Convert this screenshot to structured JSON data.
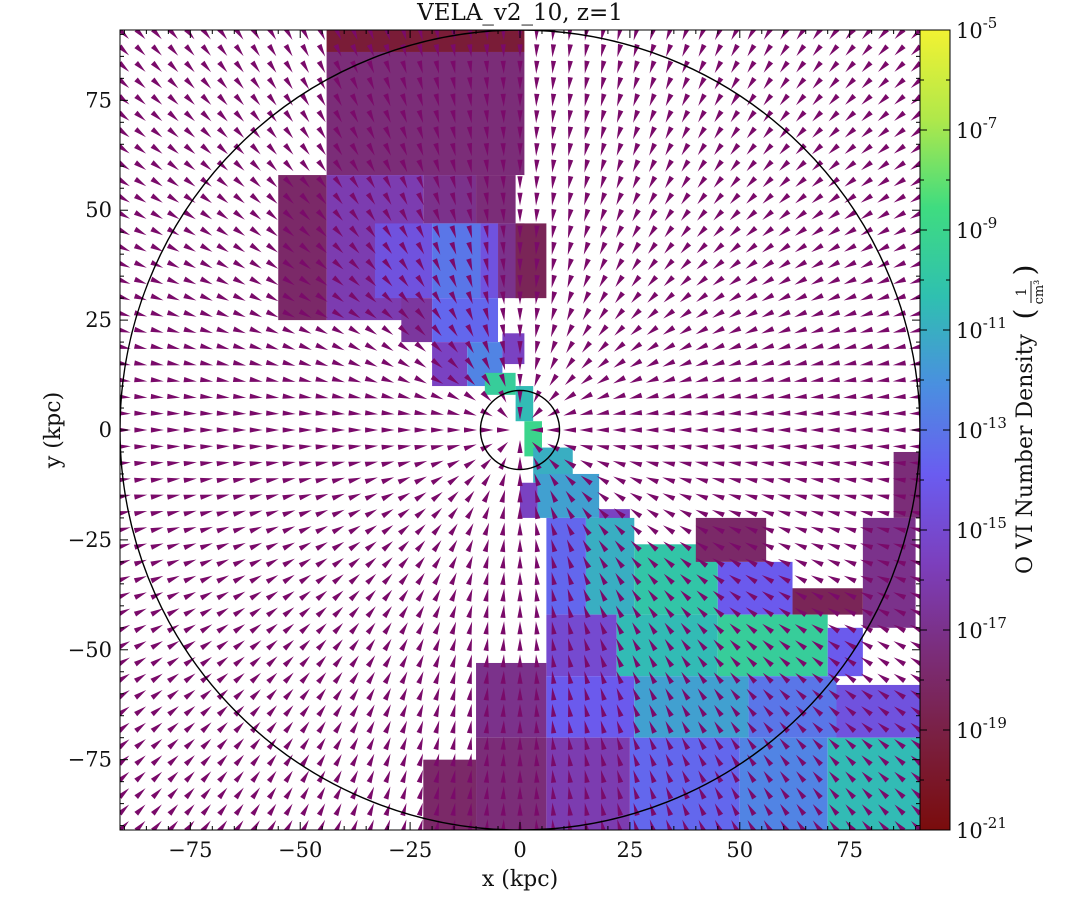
{
  "chart_data": {
    "type": "heatmap",
    "title": "VELA_v2_10, z=1",
    "xlabel": "x  (kpc)",
    "ylabel": "y  (kpc)",
    "xlim": [
      -91,
      91
    ],
    "ylim": [
      -91,
      91
    ],
    "x_ticks": [
      -75,
      -50,
      -25,
      0,
      25,
      50,
      75
    ],
    "y_ticks": [
      -75,
      -50,
      -25,
      0,
      25,
      50,
      75
    ],
    "x_tick_labels": [
      "−75",
      "−50",
      "−25",
      "0",
      "25",
      "50",
      "75"
    ],
    "y_tick_labels": [
      "−75",
      "−50",
      "−25",
      "0",
      "25",
      "50",
      "75"
    ],
    "colorbar": {
      "label": "O VI Number Density",
      "unit_numerator": "1",
      "unit_denominator": "cm³",
      "log_range": [
        -21,
        -5
      ],
      "ticks": [
        {
          "value": -21,
          "base": "10",
          "exp": "-21"
        },
        {
          "value": -19,
          "base": "10",
          "exp": "-19"
        },
        {
          "value": -17,
          "base": "10",
          "exp": "-17"
        },
        {
          "value": -15,
          "base": "10",
          "exp": "-15"
        },
        {
          "value": -13,
          "base": "10",
          "exp": "-13"
        },
        {
          "value": -11,
          "base": "10",
          "exp": "-11"
        },
        {
          "value": -9,
          "base": "10",
          "exp": "-9"
        },
        {
          "value": -7,
          "base": "10",
          "exp": "-7"
        },
        {
          "value": -5,
          "base": "10",
          "exp": "-5"
        }
      ],
      "colormap": [
        "#7a0c0c",
        "#7a1f3f",
        "#7b2d7a",
        "#7c3fbd",
        "#6a5cf0",
        "#4a8fe0",
        "#2fc0b0",
        "#3fdc80",
        "#b0e84a",
        "#f2f232"
      ]
    },
    "circles": [
      {
        "name": "virial-radius",
        "cx": 0,
        "cy": 0,
        "r": 91
      },
      {
        "name": "inner-radius",
        "cx": 0,
        "cy": 0,
        "r": 9
      }
    ],
    "regions": [
      {
        "x0": -44,
        "x1": 1,
        "y0": 86,
        "y1": 91,
        "v": -19.5
      },
      {
        "x0": -44,
        "x1": 1,
        "y0": 58,
        "y1": 86,
        "v": -17.5
      },
      {
        "x0": -55,
        "x1": -44,
        "y0": 25,
        "y1": 58,
        "v": -18.0
      },
      {
        "x0": -44,
        "x1": -22,
        "y0": 25,
        "y1": 58,
        "v": -16.0
      },
      {
        "x0": -22,
        "x1": -10,
        "y0": 47,
        "y1": 58,
        "v": -17.0
      },
      {
        "x0": -10,
        "x1": -1,
        "y0": 47,
        "y1": 58,
        "v": -17.5
      },
      {
        "x0": -33,
        "x1": -20,
        "y0": 30,
        "y1": 47,
        "v": -14.5
      },
      {
        "x0": -20,
        "x1": -9,
        "y0": 30,
        "y1": 47,
        "v": -13.0
      },
      {
        "x0": -9,
        "x1": -5,
        "y0": 30,
        "y1": 47,
        "v": -14.5
      },
      {
        "x0": -5,
        "x1": 1,
        "y0": 30,
        "y1": 47,
        "v": -17.0
      },
      {
        "x0": -1,
        "x1": 6,
        "y0": 30,
        "y1": 47,
        "v": -18.5
      },
      {
        "x0": -27,
        "x1": -20,
        "y0": 20,
        "y1": 30,
        "v": -16.5
      },
      {
        "x0": -20,
        "x1": -5,
        "y0": 20,
        "y1": 30,
        "v": -13.5
      },
      {
        "x0": -20,
        "x1": -12,
        "y0": 10,
        "y1": 20,
        "v": -15.5
      },
      {
        "x0": -12,
        "x1": -4,
        "y0": 10,
        "y1": 20,
        "v": -12.5
      },
      {
        "x0": -4,
        "x1": 1,
        "y0": 15,
        "y1": 22,
        "v": -15.5
      },
      {
        "x0": -8,
        "x1": -1,
        "y0": 8,
        "y1": 13,
        "v": -9.5
      },
      {
        "x0": -1,
        "x1": 3,
        "y0": 2,
        "y1": 10,
        "v": -10.5
      },
      {
        "x0": 1,
        "x1": 5,
        "y0": -6,
        "y1": 2,
        "v": -9.0
      },
      {
        "x0": 3,
        "x1": 12,
        "y0": -12,
        "y1": -4,
        "v": -11.0
      },
      {
        "x0": 0,
        "x1": 4,
        "y0": -20,
        "y1": -12,
        "v": -15.5
      },
      {
        "x0": 4,
        "x1": 18,
        "y0": -20,
        "y1": -10,
        "v": -11.5
      },
      {
        "x0": 18,
        "x1": 25,
        "y0": -28,
        "y1": -18,
        "v": -15.5
      },
      {
        "x0": 6,
        "x1": 15,
        "y0": -42,
        "y1": -20,
        "v": -13.5
      },
      {
        "x0": 15,
        "x1": 26,
        "y0": -42,
        "y1": -20,
        "v": -11.0
      },
      {
        "x0": 26,
        "x1": 45,
        "y0": -42,
        "y1": -26,
        "v": -10.0
      },
      {
        "x0": 45,
        "x1": 62,
        "y0": -42,
        "y1": -30,
        "v": -14.0
      },
      {
        "x0": 40,
        "x1": 56,
        "y0": -30,
        "y1": -20,
        "v": -18.0
      },
      {
        "x0": 62,
        "x1": 78,
        "y0": -42,
        "y1": -36,
        "v": -18.5
      },
      {
        "x0": 78,
        "x1": 90,
        "y0": -45,
        "y1": -20,
        "v": -17.0
      },
      {
        "x0": 85,
        "x1": 91,
        "y0": -20,
        "y1": -5,
        "v": -17.5
      },
      {
        "x0": 6,
        "x1": 22,
        "y0": -56,
        "y1": -42,
        "v": -15.0
      },
      {
        "x0": 22,
        "x1": 45,
        "y0": -56,
        "y1": -42,
        "v": -10.5
      },
      {
        "x0": 45,
        "x1": 70,
        "y0": -56,
        "y1": -42,
        "v": -9.5
      },
      {
        "x0": 70,
        "x1": 78,
        "y0": -56,
        "y1": -45,
        "v": -14.0
      },
      {
        "x0": -10,
        "x1": 6,
        "y0": -70,
        "y1": -53,
        "v": -17.0
      },
      {
        "x0": 6,
        "x1": 26,
        "y0": -70,
        "y1": -56,
        "v": -14.0
      },
      {
        "x0": 26,
        "x1": 52,
        "y0": -70,
        "y1": -56,
        "v": -11.5
      },
      {
        "x0": 52,
        "x1": 72,
        "y0": -70,
        "y1": -56,
        "v": -13.0
      },
      {
        "x0": 72,
        "x1": 91,
        "y0": -70,
        "y1": -58,
        "v": -14.5
      },
      {
        "x0": -10,
        "x1": 6,
        "y0": -91,
        "y1": -70,
        "v": -17.5
      },
      {
        "x0": -22,
        "x1": -10,
        "y0": -91,
        "y1": -75,
        "v": -18.0
      },
      {
        "x0": 6,
        "x1": 25,
        "y0": -91,
        "y1": -70,
        "v": -16.0
      },
      {
        "x0": 25,
        "x1": 50,
        "y0": -91,
        "y1": -70,
        "v": -13.5
      },
      {
        "x0": 50,
        "x1": 70,
        "y0": -91,
        "y1": -70,
        "v": -12.5
      },
      {
        "x0": 70,
        "x1": 91,
        "y0": -91,
        "y1": -70,
        "v": -10.5
      }
    ],
    "velocity_field": {
      "description": "arrows point radially inward",
      "x_range": [
        -90,
        90
      ],
      "y_range": [
        -90,
        90
      ],
      "count_x": 49,
      "count_y": 49,
      "color": "#7a0a6a"
    }
  }
}
